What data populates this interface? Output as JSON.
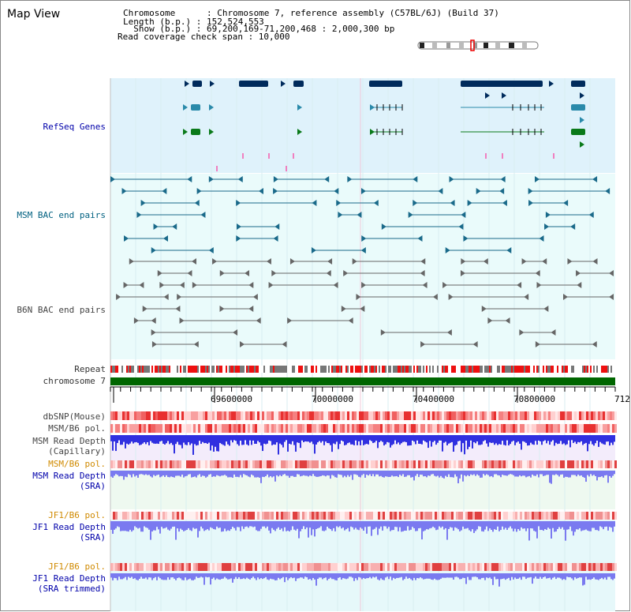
{
  "header": {
    "view_title": "Map View",
    "chromosome_line": "Chromosome      : Chromosome 7, reference assembly (C57BL/6J) (Build 37)",
    "length_line": "Length (b.p.) : 152,524,553",
    "show_line": "  Show (b.p.) : 69,200,169-71,200,468 : 2,000,300 bp",
    "coverage_line": "Read coverage check span : 10,000"
  },
  "tracks": {
    "refseq": "RefSeq Genes",
    "msm_bac": "MSM BAC end pairs",
    "b6n_bac": "B6N BAC end pairs",
    "repeat": "Repeat",
    "chromosome": "chromosome 7",
    "dbsnp": "dbSNP(Mouse)",
    "msm_b6_pol_1": "MSM/B6 pol.",
    "msm_depth_cap": "MSM Read Depth\n(Capillary)",
    "msm_b6_pol_2": "MSM/B6 pol.",
    "msm_depth_sra": "MSM Read Depth\n(SRA)",
    "jf1_b6_pol_1": "JF1/B6 pol.",
    "jf1_depth_sra": "JF1 Read Depth\n(SRA)",
    "jf1_b6_pol_2": "JF1/B6 pol.",
    "jf1_depth_trim": "JF1 Read Depth\n(SRA trimmed)"
  },
  "axis": {
    "ticks": [
      "69600000",
      "70000000",
      "70400000",
      "70800000",
      "712"
    ]
  },
  "colors": {
    "refseq_bg": "#dff2fb",
    "depth_bg": "#f3ecfb",
    "gene_dark": "#002b5c",
    "gene_teal": "#2a8aaa",
    "gene_green": "#0a7a1a",
    "chrom_green": "#006600",
    "bac_msm": "#1a6a8a",
    "bac_b6n": "#666666",
    "depth_blue": "#3030e0",
    "sra_blue": "#7a7af0",
    "snp_red": "#e83030"
  }
}
